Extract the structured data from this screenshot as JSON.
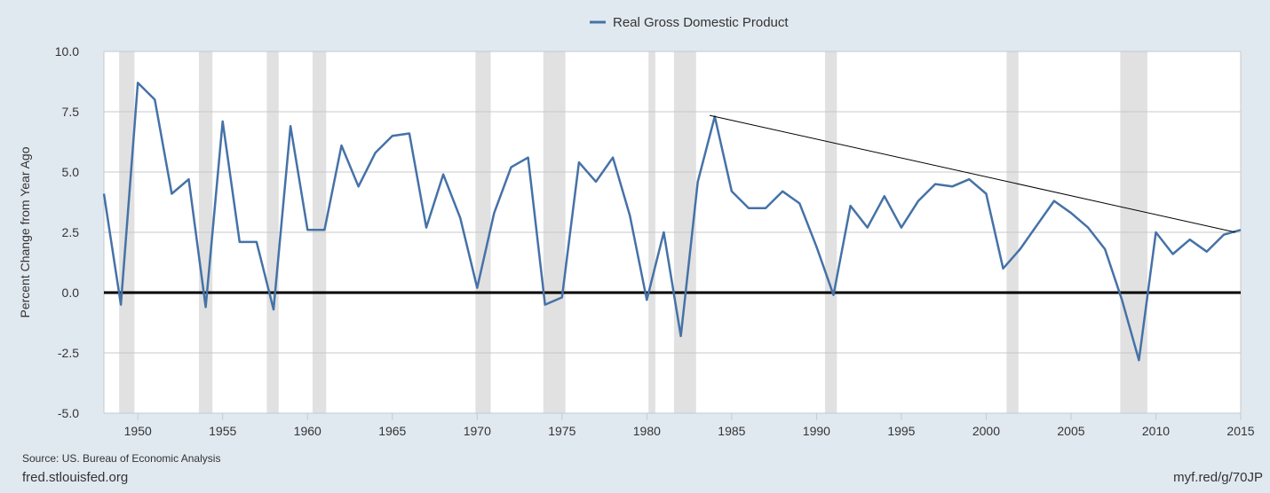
{
  "footer": {
    "source": "Source: US. Bureau of Economic Analysis",
    "site": "fred.stlouisfed.org",
    "short_link": "myf.red/g/70JP"
  },
  "colors": {
    "background": "#e1e9f0",
    "plot_area": "#ffffff",
    "series": "#4572a7",
    "recession_shading": "#e1e1e1",
    "zero_line": "#000000",
    "trend_line": "#000000"
  },
  "chart_data": {
    "type": "line",
    "title": "",
    "xlabel": "",
    "ylabel": "Percent Change from Year Ago",
    "xlim": [
      1948,
      2015
    ],
    "ylim": [
      -5,
      10
    ],
    "grid": true,
    "legend_position": "top-center",
    "x_ticks": [
      1950,
      1955,
      1960,
      1965,
      1970,
      1975,
      1980,
      1985,
      1990,
      1995,
      2000,
      2005,
      2010,
      2015
    ],
    "y_ticks": [
      10.0,
      7.5,
      5.0,
      2.5,
      0.0,
      -2.5,
      -5.0
    ],
    "y_tick_labels": [
      "10.0",
      "7.5",
      "5.0",
      "2.5",
      "0.0",
      "-2.5",
      "-5.0"
    ],
    "series": [
      {
        "name": "Real Gross Domestic Product",
        "x": [
          1948,
          1949,
          1950,
          1951,
          1952,
          1953,
          1954,
          1955,
          1956,
          1957,
          1958,
          1959,
          1960,
          1961,
          1962,
          1963,
          1964,
          1965,
          1966,
          1967,
          1968,
          1969,
          1970,
          1971,
          1972,
          1973,
          1974,
          1975,
          1976,
          1977,
          1978,
          1979,
          1980,
          1981,
          1982,
          1983,
          1984,
          1985,
          1986,
          1987,
          1988,
          1989,
          1990,
          1991,
          1992,
          1993,
          1994,
          1995,
          1996,
          1997,
          1998,
          1999,
          2000,
          2001,
          2002,
          2003,
          2004,
          2005,
          2006,
          2007,
          2008,
          2009,
          2010,
          2011,
          2012,
          2013,
          2014,
          2015
        ],
        "values": [
          4.1,
          -0.5,
          8.7,
          8.0,
          4.1,
          4.7,
          -0.6,
          7.1,
          2.1,
          2.1,
          -0.7,
          6.9,
          2.6,
          2.6,
          6.1,
          4.4,
          5.8,
          6.5,
          6.6,
          2.7,
          4.9,
          3.1,
          0.2,
          3.3,
          5.2,
          5.6,
          -0.5,
          -0.2,
          5.4,
          4.6,
          5.6,
          3.2,
          -0.3,
          2.5,
          -1.8,
          4.6,
          7.3,
          4.2,
          3.5,
          3.5,
          4.2,
          3.7,
          1.9,
          -0.1,
          3.6,
          2.7,
          4.0,
          2.7,
          3.8,
          4.5,
          4.4,
          4.7,
          4.1,
          1.0,
          1.8,
          2.8,
          3.8,
          3.3,
          2.7,
          1.8,
          -0.3,
          -2.8,
          2.5,
          1.6,
          2.2,
          1.7,
          2.4,
          2.6
        ]
      }
    ],
    "recessions": [
      [
        1948.9,
        1949.8
      ],
      [
        1953.6,
        1954.4
      ],
      [
        1957.6,
        1958.3
      ],
      [
        1960.3,
        1961.1
      ],
      [
        1969.9,
        1970.8
      ],
      [
        1973.9,
        1975.2
      ],
      [
        1980.1,
        1980.5
      ],
      [
        1981.6,
        1982.9
      ],
      [
        1990.5,
        1991.2
      ],
      [
        2001.2,
        2001.9
      ],
      [
        2007.9,
        2009.5
      ]
    ],
    "annotations": [
      {
        "type": "trend-line",
        "from": [
          1983.7,
          7.35
        ],
        "to": [
          2014.7,
          2.5
        ]
      }
    ]
  }
}
